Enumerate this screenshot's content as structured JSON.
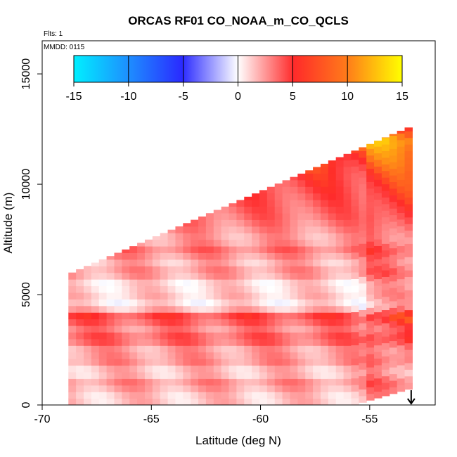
{
  "chart_data": {
    "type": "heatmap",
    "title": "ORCAS RF01 CO_NOAA_m_CO_QCLS",
    "flights_label": "Flts: 1",
    "date_label": "MMDD: 0115",
    "xlabel": "Latitude (deg N)",
    "ylabel": "Altitude (m)",
    "xlim": [
      -70,
      -52
    ],
    "ylim": [
      0,
      16500
    ],
    "x_ticks": [
      -70,
      -65,
      -60,
      -55
    ],
    "x_tick_labels": [
      "-70",
      "-65",
      "-60",
      "-55"
    ],
    "y_ticks": [
      0,
      5000,
      10000,
      15000
    ],
    "y_tick_labels": [
      "0",
      "5000",
      "10000",
      "15000"
    ],
    "colorbar": {
      "range": [
        -15,
        15
      ],
      "ticks": [
        -15,
        -10,
        -5,
        0,
        5,
        10,
        15
      ],
      "tick_labels": [
        "-15",
        "-10",
        "-5",
        "0",
        "5",
        "10",
        "15"
      ],
      "colors": [
        "#00f0ff",
        "#2a2aff",
        "#ffffff",
        "#ff2a2a",
        "#ffff00"
      ]
    },
    "grid": false,
    "cell_size": {
      "lat_deg": 0.35,
      "alt_m": 300
    },
    "coverage": {
      "lat_start": -68.8,
      "lat_end": -53.1,
      "top_altitude_left_m": 6000,
      "top_altitude_right_m": 12700,
      "bottom_altitude_right_m": 800
    },
    "altitude_bands": [
      {
        "alt": 500,
        "value": 2
      },
      {
        "alt": 1000,
        "value": 4
      },
      {
        "alt": 1500,
        "value": 1.5
      },
      {
        "alt": 2000,
        "value": 4
      },
      {
        "alt": 2500,
        "value": 3
      },
      {
        "alt": 3000,
        "value": 6
      },
      {
        "alt": 3500,
        "value": 4
      },
      {
        "alt": 4000,
        "value": 7
      },
      {
        "alt": 4500,
        "value": 0.5
      },
      {
        "alt": 5000,
        "value": 2
      },
      {
        "alt": 5500,
        "value": 1
      },
      {
        "alt": 6000,
        "value": 4
      },
      {
        "alt": 6500,
        "value": 2.5
      },
      {
        "alt": 7000,
        "value": 5
      },
      {
        "alt": 7500,
        "value": 3
      },
      {
        "alt": 8000,
        "value": 4
      },
      {
        "alt": 8500,
        "value": 5
      },
      {
        "alt": 9000,
        "value": 5.5
      },
      {
        "alt": 9500,
        "value": 6
      },
      {
        "alt": 10000,
        "value": 6.5
      },
      {
        "alt": 10500,
        "value": 7
      },
      {
        "alt": 11000,
        "value": 8
      },
      {
        "alt": 11500,
        "value": 9
      },
      {
        "alt": 12000,
        "value": 10.5
      },
      {
        "alt": 12500,
        "value": 8
      }
    ],
    "flight_marker": {
      "latitude": -53.1,
      "symbol": "↓"
    }
  }
}
